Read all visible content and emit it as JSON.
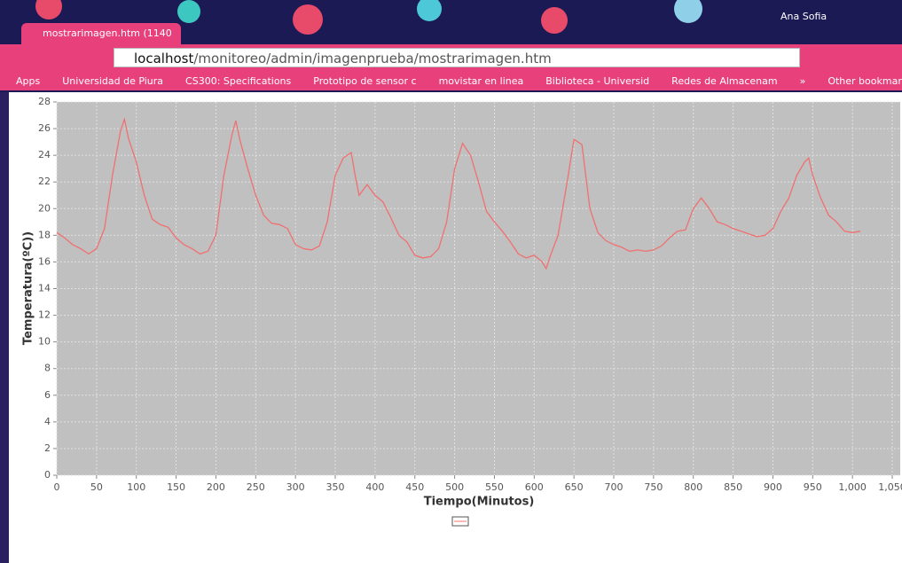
{
  "browser": {
    "tab_title": "mostrarimagen.htm (1140",
    "user": "Ana Sofia",
    "url_host": "localhost",
    "url_path": "/monitoreo/admin/imagenprueba/mostrarimagen.htm",
    "bookmarks": [
      "Apps",
      "Universidad de Piura",
      "CS300: Specifications",
      "Prototipo de sensor c",
      "movistar en linea",
      "Biblioteca - Universid",
      "Redes de Almacenam",
      "»",
      "Other bookmarks"
    ]
  },
  "chart_data": {
    "type": "line",
    "xlabel": "Tiempo(Minutos)",
    "ylabel": "Temperatura(ºC))",
    "x": [
      0,
      10,
      20,
      30,
      40,
      50,
      60,
      70,
      80,
      85,
      90,
      100,
      110,
      120,
      130,
      140,
      150,
      160,
      170,
      180,
      190,
      200,
      210,
      220,
      225,
      230,
      240,
      250,
      260,
      270,
      280,
      290,
      300,
      310,
      320,
      330,
      340,
      350,
      360,
      370,
      375,
      380,
      390,
      400,
      410,
      420,
      430,
      440,
      450,
      460,
      470,
      480,
      490,
      500,
      510,
      520,
      530,
      540,
      550,
      560,
      570,
      580,
      590,
      600,
      610,
      615,
      620,
      630,
      640,
      650,
      660,
      670,
      680,
      690,
      700,
      710,
      720,
      730,
      740,
      750,
      760,
      770,
      780,
      790,
      800,
      810,
      820,
      830,
      840,
      850,
      860,
      870,
      880,
      890,
      900,
      910,
      920,
      930,
      940,
      945,
      950,
      960,
      970,
      980,
      990,
      1000,
      1010
    ],
    "series": [
      {
        "color": "#f07070",
        "values": [
          18.2,
          17.8,
          17.3,
          17.0,
          16.6,
          17.0,
          18.5,
          22.5,
          25.8,
          26.7,
          25.3,
          23.5,
          21.0,
          19.2,
          18.8,
          18.6,
          17.8,
          17.3,
          17.0,
          16.6,
          16.8,
          18.0,
          22.5,
          25.5,
          26.6,
          25.2,
          23.0,
          21.0,
          19.5,
          18.9,
          18.8,
          18.5,
          17.3,
          17.0,
          16.9,
          17.2,
          19.0,
          22.5,
          23.8,
          24.2,
          22.5,
          21.0,
          21.8,
          21.0,
          20.5,
          19.3,
          18.0,
          17.5,
          16.5,
          16.3,
          16.4,
          17.0,
          19.0,
          23.0,
          24.9,
          24.0,
          22.0,
          19.8,
          19.0,
          18.3,
          17.5,
          16.6,
          16.3,
          16.5,
          16.0,
          15.5,
          16.4,
          18.0,
          21.5,
          25.2,
          24.8,
          20.0,
          18.2,
          17.6,
          17.3,
          17.1,
          16.8,
          16.9,
          16.8,
          16.9,
          17.2,
          17.8,
          18.3,
          18.4,
          20.0,
          20.8,
          20.0,
          19.0,
          18.8,
          18.5,
          18.3,
          18.1,
          17.9,
          18.0,
          18.5,
          19.8,
          20.8,
          22.5,
          23.5,
          23.8,
          22.5,
          20.8,
          19.5,
          19.0,
          18.3,
          18.2,
          18.3
        ]
      }
    ],
    "xlim": [
      0,
      1060
    ],
    "ylim": [
      0,
      28
    ],
    "xticks": [
      0,
      50,
      100,
      150,
      200,
      250,
      300,
      350,
      400,
      450,
      500,
      550,
      600,
      650,
      700,
      750,
      800,
      850,
      900,
      950,
      {
        "value": 1000,
        "label": "1,000"
      },
      {
        "value": 1050,
        "label": "1,050"
      }
    ],
    "yticks": [
      0,
      2,
      4,
      6,
      8,
      10,
      12,
      14,
      16,
      18,
      20,
      22,
      24,
      26,
      28
    ],
    "grid": true
  }
}
